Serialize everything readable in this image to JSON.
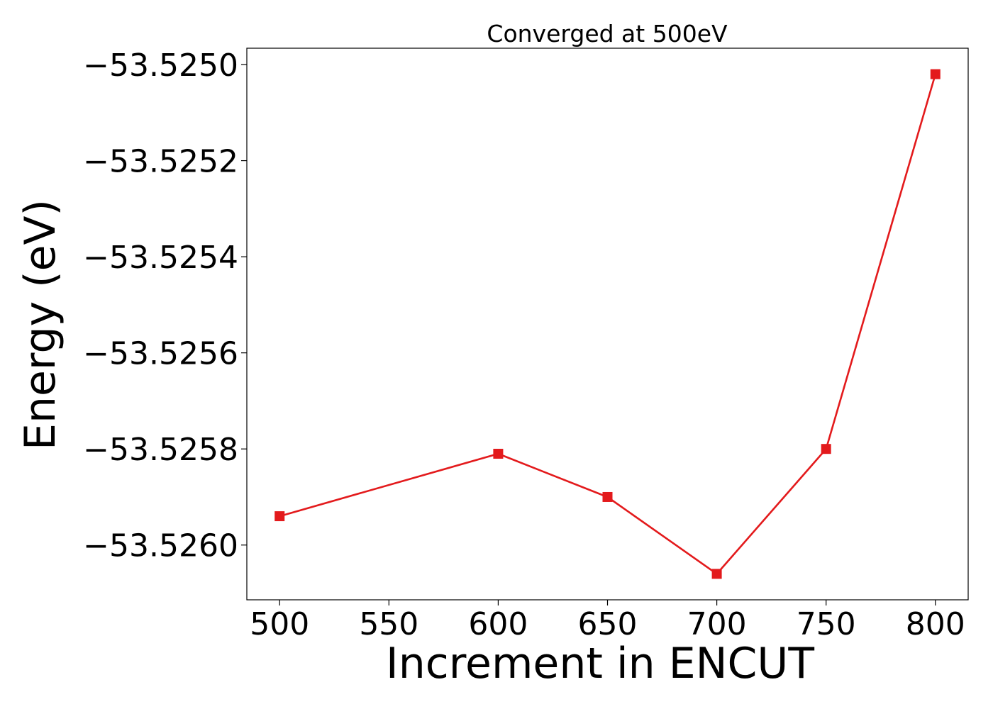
{
  "chart_data": {
    "type": "line",
    "title": "Converged at 500eV",
    "xlabel": "Increment in ENCUT",
    "ylabel": "Energy (eV)",
    "x": [
      500,
      600,
      650,
      700,
      750,
      800
    ],
    "series": [
      {
        "values": [
          -53.52594,
          -53.52581,
          -53.5259,
          -53.52606,
          -53.5258,
          -53.52502
        ],
        "color": "#e31a1c",
        "marker": "square"
      }
    ],
    "x_ticks": [
      500,
      550,
      600,
      650,
      700,
      750,
      800
    ],
    "x_tick_labels": [
      "500",
      "550",
      "600",
      "650",
      "700",
      "750",
      "800"
    ],
    "y_ticks": [
      -53.525,
      -53.5252,
      -53.5254,
      -53.5256,
      -53.5258,
      -53.526
    ],
    "y_tick_labels": [
      "−53.5250",
      "−53.5252",
      "−53.5254",
      "−53.5256",
      "−53.5258",
      "−53.5260"
    ],
    "xlim": [
      485,
      815
    ],
    "ylim": [
      -53.526114,
      -53.524966
    ],
    "grid": false,
    "legend": "none"
  }
}
